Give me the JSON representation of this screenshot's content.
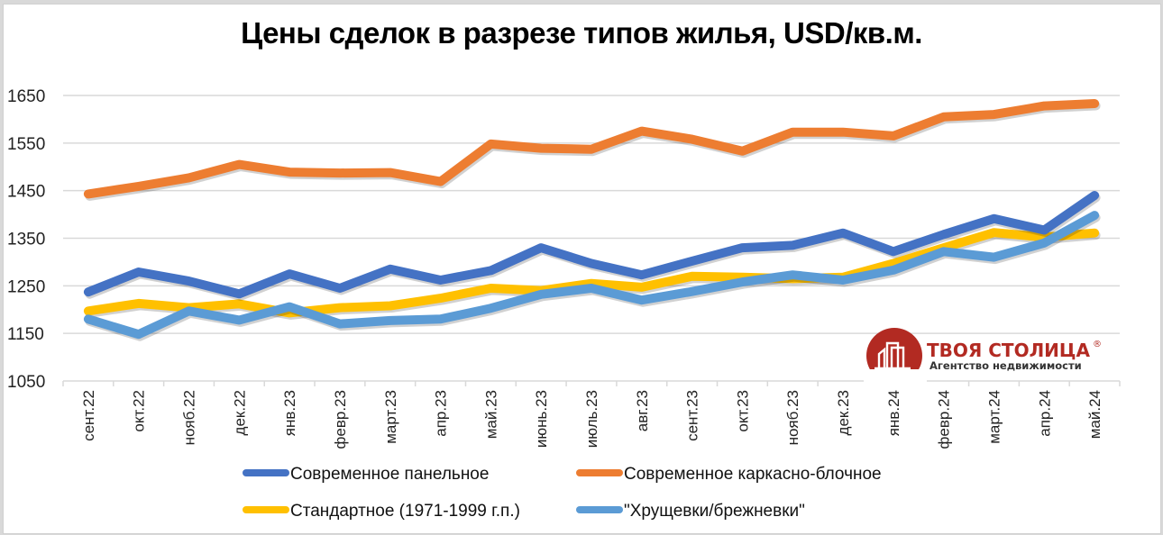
{
  "chart_data": {
    "type": "line",
    "title": "Цены сделок в разрезе типов жилья, USD/кв.м.",
    "xlabel": "",
    "ylabel": "",
    "ylim": [
      1050,
      1700
    ],
    "yticks": [
      1050,
      1150,
      1250,
      1350,
      1450,
      1550,
      1650
    ],
    "grid": true,
    "legend_position": "bottom",
    "categories": [
      "сент.22",
      "окт.22",
      "нояб.22",
      "дек.22",
      "янв.23",
      "февр.23",
      "март.23",
      "апр.23",
      "май.23",
      "июнь.23",
      "июль.23",
      "авг.23",
      "сент.23",
      "окт.23",
      "нояб.23",
      "дек.23",
      "янв.24",
      "февр.24",
      "март.24",
      "апр.24",
      "май.24"
    ],
    "series": [
      {
        "name": "Современное панельное",
        "color": "#4472c4",
        "values": [
          1237,
          1279,
          1260,
          1233,
          1275,
          1245,
          1285,
          1262,
          1282,
          1330,
          1297,
          1273,
          1302,
          1330,
          1335,
          1361,
          1322,
          1358,
          1391,
          1367,
          1440
        ]
      },
      {
        "name": "Современное каркасно-блочное",
        "color": "#ed7d31",
        "values": [
          1443,
          1459,
          1477,
          1505,
          1489,
          1487,
          1488,
          1469,
          1548,
          1539,
          1537,
          1575,
          1558,
          1533,
          1573,
          1573,
          1565,
          1605,
          1610,
          1628,
          1633
        ]
      },
      {
        "name": "Стандартное (1971-1999 г.п.)",
        "color": "#ffc000",
        "values": [
          1197,
          1213,
          1204,
          1212,
          1193,
          1204,
          1208,
          1224,
          1245,
          1240,
          1255,
          1247,
          1270,
          1268,
          1265,
          1268,
          1297,
          1330,
          1362,
          1352,
          1361
        ]
      },
      {
        "name": "\"Хрущевки/брежневки\"",
        "color": "#5b9bd5",
        "values": [
          1180,
          1148,
          1197,
          1178,
          1206,
          1170,
          1177,
          1180,
          1203,
          1232,
          1245,
          1220,
          1238,
          1258,
          1273,
          1262,
          1283,
          1322,
          1310,
          1340,
          1398
        ]
      }
    ]
  },
  "logo": {
    "name": "ТВОЯ СТОЛИЦА",
    "registered_mark": "®",
    "tagline": "Агентство недвижимости",
    "color": "#b22a22"
  }
}
